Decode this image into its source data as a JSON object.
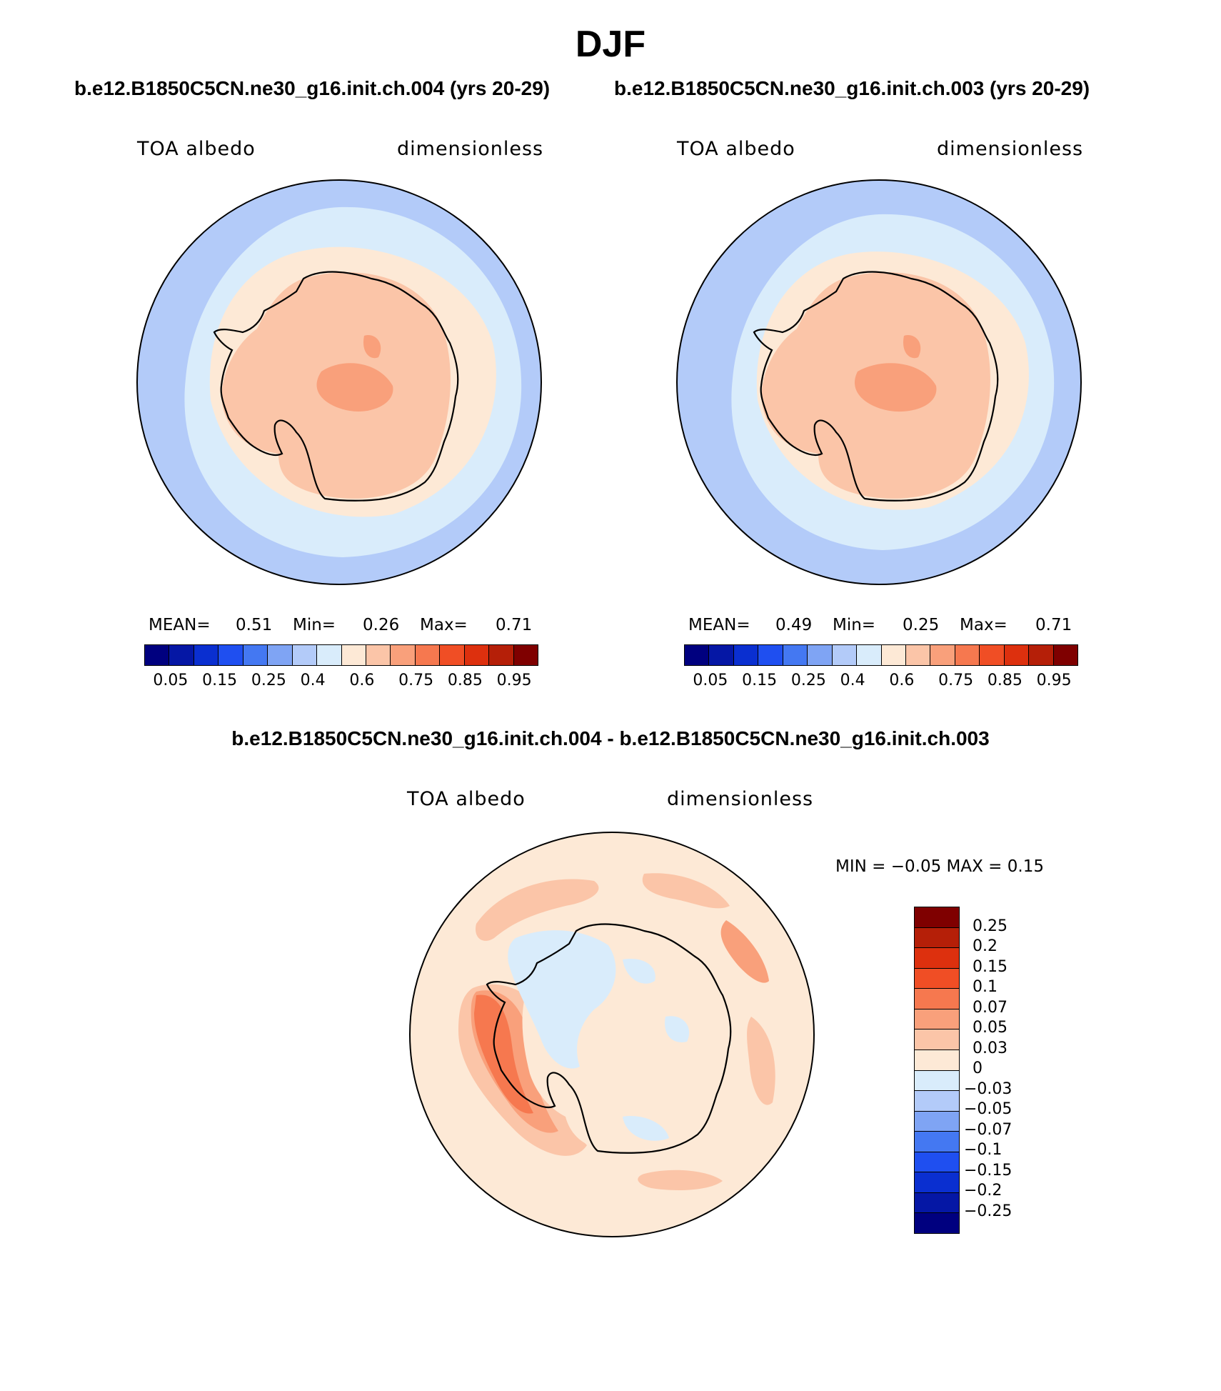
{
  "title": "DJF",
  "panels": [
    {
      "case": "b.e12.B1850C5CN.ne30_g16.init.ch.004 (yrs 20-29)",
      "var": "TOA albedo",
      "units": "dimensionless",
      "mean_label": "MEAN=",
      "mean": "0.51",
      "min_label": "Min=",
      "min": "0.26",
      "max_label": "Max=",
      "max": "0.71"
    },
    {
      "case": "b.e12.B1850C5CN.ne30_g16.init.ch.003 (yrs 20-29)",
      "var": "TOA albedo",
      "units": "dimensionless",
      "mean_label": "MEAN=",
      "mean": "0.49",
      "min_label": "Min=",
      "min": "0.25",
      "max_label": "Max=",
      "max": "0.71"
    }
  ],
  "abs_colorbar": {
    "colors": [
      "#00007f",
      "#0517a5",
      "#0a2fd0",
      "#1f4ff0",
      "#4478f2",
      "#7fa4f4",
      "#b3cbf9",
      "#d9ecfb",
      "#fde9d6",
      "#fbc5a8",
      "#f9a07b",
      "#f6784f",
      "#f04e25",
      "#dd300e",
      "#b51f08",
      "#7f0000"
    ],
    "labels": [
      "0.05",
      "0.15",
      "0.25",
      "0.4",
      "0.6",
      "0.75",
      "0.85",
      "0.95"
    ]
  },
  "diff": {
    "title": "b.e12.B1850C5CN.ne30_g16.init.ch.004 - b.e12.B1850C5CN.ne30_g16.init.ch.003",
    "var": "TOA albedo",
    "units": "dimensionless",
    "minmax": "MIN =   −0.05 MAX =     0.15"
  },
  "diff_colorbar": {
    "colors": [
      "#7f0000",
      "#b51f08",
      "#dd300e",
      "#f04e25",
      "#f6784f",
      "#f9a07b",
      "#fbc5a8",
      "#fde9d6",
      "#d9ecfb",
      "#b3cbf9",
      "#7fa4f4",
      "#4478f2",
      "#1f4ff0",
      "#0a2fd0",
      "#0517a5",
      "#00007f"
    ],
    "labels": [
      "0.25",
      "0.2",
      "0.15",
      "0.1",
      "0.07",
      "0.05",
      "0.03",
      "0",
      "−0.03",
      "−0.05",
      "−0.07",
      "−0.1",
      "−0.15",
      "−0.2",
      "−0.25"
    ]
  }
}
